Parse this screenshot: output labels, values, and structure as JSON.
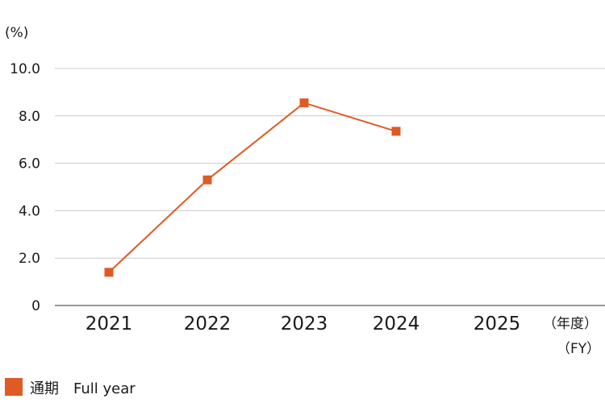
{
  "chart_data": {
    "type": "line",
    "y_unit_label": "(%)",
    "x_unit_label_line1": "（年度）",
    "x_unit_label_line2": "（FY）",
    "categories": [
      "2021",
      "2022",
      "2023",
      "2024",
      "2025"
    ],
    "series": [
      {
        "name": "通期　Full year",
        "color": "#e05a24",
        "values": [
          1.4,
          5.3,
          8.55,
          7.35,
          null
        ]
      }
    ],
    "yticks": [
      "10.0",
      "8.0",
      "6.0",
      "4.0",
      "2.0",
      "0"
    ],
    "ylim": [
      0,
      10
    ],
    "grid": true,
    "legend_position": "bottom-left"
  }
}
